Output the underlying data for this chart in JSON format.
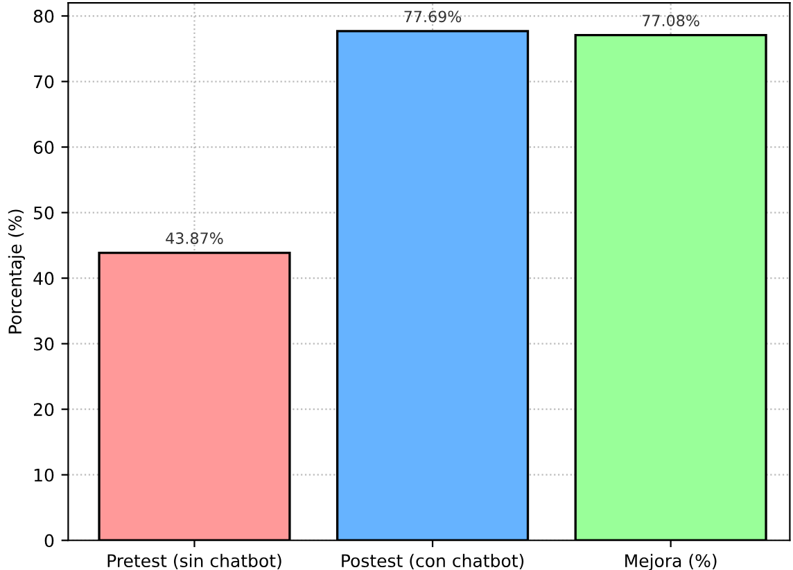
{
  "chart_data": {
    "type": "bar",
    "ylabel": "Porcentaje (%)",
    "categories": [
      "Pretest (sin chatbot)",
      "Postest (con chatbot)",
      "Mejora (%)"
    ],
    "values": [
      43.87,
      77.69,
      77.08
    ],
    "colors": [
      "#ff9999",
      "#66b3ff",
      "#99ff99"
    ],
    "value_labels": [
      "43.87%",
      "77.69%",
      "77.08%"
    ],
    "ylim": [
      0,
      82
    ],
    "yticks": [
      0,
      10,
      20,
      30,
      40,
      50,
      60,
      70,
      80
    ],
    "grid": true
  }
}
